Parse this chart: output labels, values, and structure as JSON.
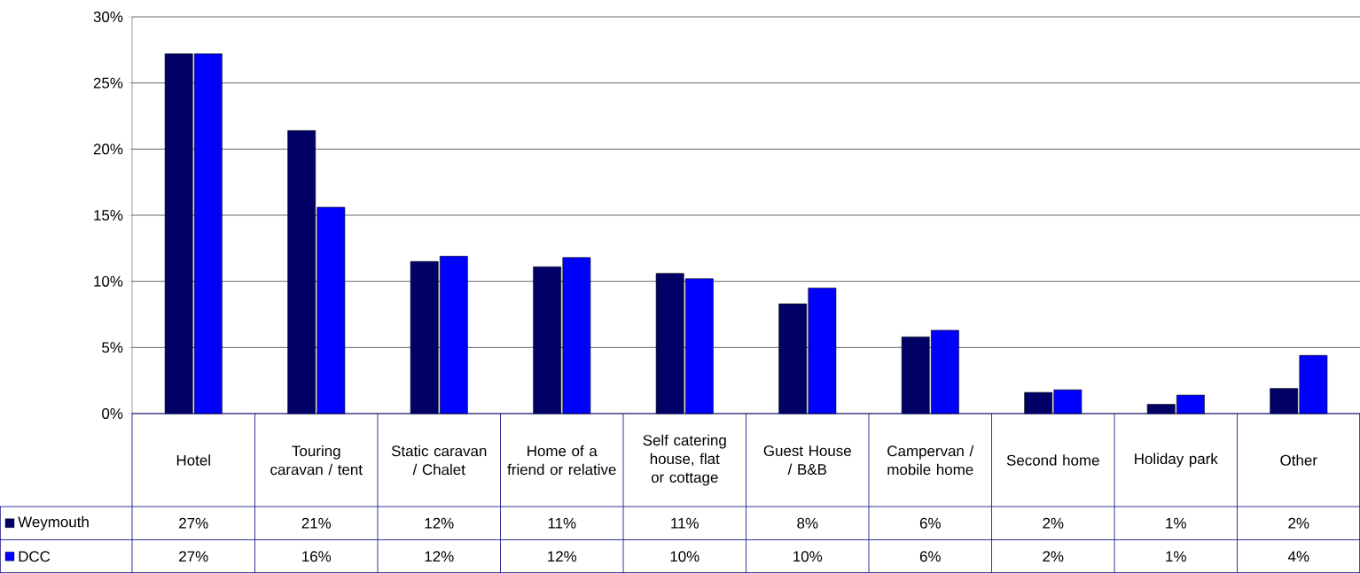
{
  "chart_data": {
    "type": "bar",
    "categories": [
      "Hotel",
      "Touring caravan / tent",
      "Static caravan / Chalet",
      "Home of a friend or relative",
      "Self catering house, flat or cottage",
      "Guest House / B&B",
      "Campervan / mobile home",
      "Second home",
      "Holiday park",
      "Other"
    ],
    "series": [
      {
        "name": "Weymouth",
        "color": "#000066",
        "values": [
          27.2,
          21.4,
          11.5,
          11.1,
          10.6,
          8.3,
          5.8,
          1.6,
          0.7,
          1.9
        ],
        "value_labels": [
          "27%",
          "21%",
          "12%",
          "11%",
          "11%",
          "8%",
          "6%",
          "2%",
          "1%",
          "2%"
        ]
      },
      {
        "name": "DCC",
        "color": "#0000ff",
        "values": [
          27.2,
          15.6,
          11.9,
          11.8,
          10.2,
          9.5,
          6.3,
          1.8,
          1.4,
          4.4
        ],
        "value_labels": [
          "27%",
          "16%",
          "12%",
          "12%",
          "10%",
          "10%",
          "6%",
          "2%",
          "1%",
          "4%"
        ]
      }
    ],
    "ylim": [
      0,
      30
    ],
    "yticks": [
      {
        "value": 0,
        "label": "0%"
      },
      {
        "value": 5,
        "label": "5%"
      },
      {
        "value": 10,
        "label": "10%"
      },
      {
        "value": 15,
        "label": "15%"
      },
      {
        "value": 20,
        "label": "20%"
      },
      {
        "value": 25,
        "label": "25%"
      },
      {
        "value": 30,
        "label": "30%"
      }
    ],
    "grid": "y",
    "legend": "bottom left"
  }
}
